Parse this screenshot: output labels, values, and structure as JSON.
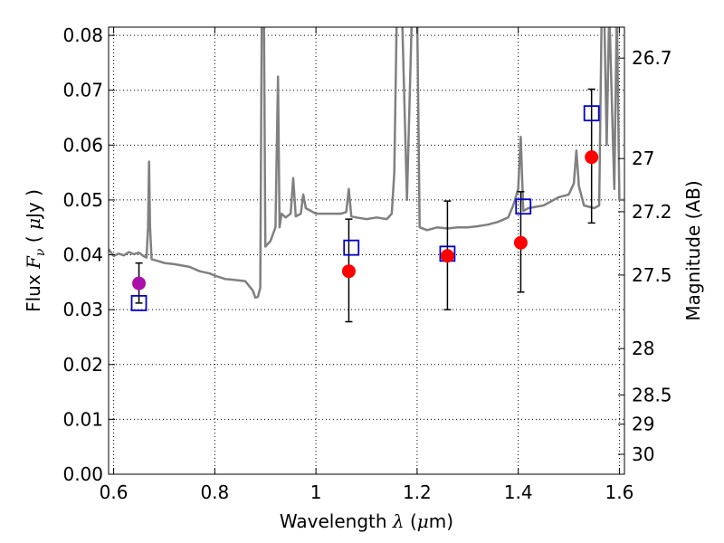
{
  "chart_data": {
    "type": "scatter",
    "title": "",
    "xlabel": {
      "prefix": "Wavelength",
      "symbol": "λ",
      "open": "(",
      "unit": "μ",
      "unit_rest": "m)"
    },
    "ylabel": {
      "prefix": "Flux",
      "symbol": "F",
      "subscript": "ν",
      "open": "(",
      "unit": "μ",
      "unit_rest": "Jy )"
    },
    "y2label": "Magnitude (AB)",
    "xlim": [
      0.59,
      1.61
    ],
    "ylim": [
      0.0,
      0.0815
    ],
    "xticks": [
      {
        "value": 0.6,
        "label": "0.6"
      },
      {
        "value": 0.8,
        "label": "0.8"
      },
      {
        "value": 1.0,
        "label": "1"
      },
      {
        "value": 1.2,
        "label": "1.2"
      },
      {
        "value": 1.4,
        "label": "1.4"
      },
      {
        "value": 1.6,
        "label": "1.6"
      }
    ],
    "yticks": [
      {
        "value": 0.0,
        "label": "0.00"
      },
      {
        "value": 0.01,
        "label": "0.01"
      },
      {
        "value": 0.02,
        "label": "0.02"
      },
      {
        "value": 0.03,
        "label": "0.03"
      },
      {
        "value": 0.04,
        "label": "0.04"
      },
      {
        "value": 0.05,
        "label": "0.05"
      },
      {
        "value": 0.06,
        "label": "0.06"
      },
      {
        "value": 0.07,
        "label": "0.07"
      },
      {
        "value": 0.08,
        "label": "0.08"
      }
    ],
    "y2ticks": [
      {
        "mag": 26.7,
        "label": "26.7"
      },
      {
        "mag": 27.0,
        "label": "27"
      },
      {
        "mag": 27.2,
        "label": "27.2"
      },
      {
        "mag": 27.5,
        "label": "27.5"
      },
      {
        "mag": 28.0,
        "label": "28"
      },
      {
        "mag": 28.5,
        "label": "28.5"
      },
      {
        "mag": 29.0,
        "label": "29"
      },
      {
        "mag": 30.0,
        "label": "30"
      }
    ],
    "grid": true,
    "series": [
      {
        "kind": "line",
        "color": "#808080",
        "x": [
          0.59,
          0.6,
          0.61,
          0.62,
          0.63,
          0.64,
          0.65,
          0.66,
          0.665,
          0.668,
          0.67,
          0.672,
          0.675,
          0.69,
          0.7,
          0.72,
          0.75,
          0.77,
          0.79,
          0.8,
          0.82,
          0.84,
          0.86,
          0.875,
          0.88,
          0.885,
          0.89,
          0.893,
          0.897,
          0.9,
          0.91,
          0.92,
          0.925,
          0.928,
          0.932,
          0.94,
          0.95,
          0.955,
          0.96,
          0.97,
          0.975,
          0.98,
          1.0,
          1.05,
          1.06,
          1.065,
          1.07,
          1.08,
          1.1,
          1.12,
          1.14,
          1.15,
          1.155,
          1.16,
          1.17,
          1.18,
          1.19,
          1.2,
          1.205,
          1.22,
          1.24,
          1.26,
          1.28,
          1.3,
          1.32,
          1.34,
          1.36,
          1.38,
          1.39,
          1.4,
          1.405,
          1.41,
          1.42,
          1.45,
          1.48,
          1.5,
          1.51,
          1.515,
          1.52,
          1.53,
          1.55,
          1.56,
          1.565,
          1.57,
          1.575,
          1.58,
          1.59,
          1.595,
          1.6,
          1.61
        ],
        "y": [
          0.041,
          0.0398,
          0.0402,
          0.0399,
          0.0405,
          0.0401,
          0.0404,
          0.0397,
          0.0395,
          0.045,
          0.057,
          0.045,
          0.0392,
          0.0388,
          0.0385,
          0.0383,
          0.0378,
          0.037,
          0.0366,
          0.0362,
          0.0356,
          0.0354,
          0.0352,
          0.0335,
          0.0322,
          0.0323,
          0.034,
          0.085,
          0.085,
          0.0415,
          0.0425,
          0.045,
          0.0725,
          0.045,
          0.0475,
          0.0468,
          0.0475,
          0.054,
          0.047,
          0.0475,
          0.051,
          0.0485,
          0.0475,
          0.0475,
          0.0478,
          0.052,
          0.047,
          0.0468,
          0.0465,
          0.0468,
          0.0465,
          0.0475,
          0.055,
          0.085,
          0.085,
          0.05,
          0.085,
          0.085,
          0.045,
          0.0445,
          0.045,
          0.0448,
          0.045,
          0.045,
          0.0452,
          0.0455,
          0.046,
          0.0468,
          0.049,
          0.052,
          0.0615,
          0.048,
          0.0485,
          0.049,
          0.0505,
          0.051,
          0.053,
          0.059,
          0.0525,
          0.049,
          0.0485,
          0.049,
          0.085,
          0.085,
          0.06,
          0.085,
          0.052,
          0.085,
          0.05,
          0.05
        ]
      }
    ],
    "points": [
      {
        "x": 0.65,
        "y": 0.0348,
        "color": "#aa10aa",
        "marker": "circle",
        "err_low": 0.0312,
        "err_high": 0.0385
      },
      {
        "x": 1.065,
        "y": 0.037,
        "color": "#ff0000",
        "marker": "circle",
        "err_low": 0.0278,
        "err_high": 0.0465
      },
      {
        "x": 1.26,
        "y": 0.0398,
        "color": "#ff0000",
        "marker": "circle",
        "err_low": 0.03,
        "err_high": 0.0498
      },
      {
        "x": 1.405,
        "y": 0.0422,
        "color": "#ff0000",
        "marker": "circle",
        "err_low": 0.0332,
        "err_high": 0.0515
      },
      {
        "x": 1.545,
        "y": 0.0578,
        "color": "#ff0000",
        "marker": "circle",
        "err_low": 0.0458,
        "err_high": 0.0702
      }
    ],
    "squares": [
      {
        "x": 0.65,
        "y": 0.0312,
        "color": "#0000cc"
      },
      {
        "x": 1.07,
        "y": 0.0413,
        "color": "#0000cc"
      },
      {
        "x": 1.26,
        "y": 0.0402,
        "color": "#0000cc"
      },
      {
        "x": 1.41,
        "y": 0.0488,
        "color": "#0000cc"
      },
      {
        "x": 1.545,
        "y": 0.0658,
        "color": "#0000cc"
      }
    ]
  }
}
